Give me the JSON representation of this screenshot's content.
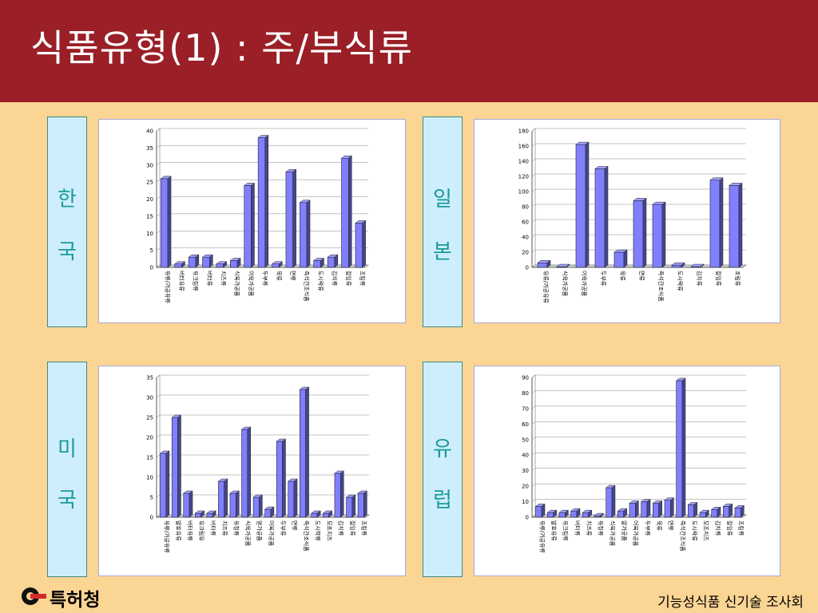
{
  "title": "식품유형(1) : 주/부식류",
  "regions": {
    "korea": [
      "한",
      "국"
    ],
    "japan": [
      "일",
      "본"
    ],
    "usa": [
      "미",
      "국"
    ],
    "europe": [
      "유",
      "럽"
    ]
  },
  "footer": {
    "agency": "특허청",
    "org": "기능성식품 신기술 조사회"
  },
  "colors": {
    "bar": "#8080ff",
    "header": "#9a1f27",
    "background": "#fbd593"
  },
  "chart_data": [
    {
      "type": "bar",
      "region": "한국",
      "ylim": [
        0,
        40
      ],
      "ticks": [
        0,
        5,
        10,
        15,
        20,
        25,
        30,
        35,
        40
      ],
      "categories": [
        "유류/가공유류",
        "버터유류",
        "유크림류",
        "버터류",
        "치즈류",
        "식육가공품",
        "어육가공품",
        "두부류",
        "묵류",
        "면류",
        "즉석간조식품",
        "도시락류",
        "김치류",
        "절임류",
        "조림류"
      ],
      "values": [
        26,
        1,
        3,
        3,
        1,
        2,
        24,
        38,
        1,
        28,
        19,
        2,
        3,
        32,
        13
      ]
    },
    {
      "type": "bar",
      "region": "일본",
      "ylim": [
        0,
        180
      ],
      "ticks": [
        0,
        20,
        40,
        60,
        80,
        100,
        120,
        140,
        160,
        180
      ],
      "categories": [
        "유류/가공유류",
        "식육가공품",
        "어육가공품",
        "두부류",
        "묵류",
        "면류",
        "즉석간조식품",
        "도시락류",
        "김치류",
        "절임류",
        "조림류"
      ],
      "values": [
        6,
        1,
        162,
        130,
        20,
        88,
        83,
        3,
        1,
        115,
        108
      ]
    },
    {
      "type": "bar",
      "region": "미국",
      "ylim": [
        0,
        35
      ],
      "ticks": [
        0,
        5,
        10,
        15,
        20,
        25,
        30,
        35
      ],
      "categories": [
        "유류/가공유류",
        "발효유류",
        "버터유류",
        "유크림유",
        "버터류",
        "치즈류",
        "유청류",
        "식육가공품",
        "알가공품",
        "어육가공품",
        "두부류",
        "면류",
        "즉석간조식품",
        "도시락류",
        "모조치즈",
        "김치류",
        "절임류",
        "조림류"
      ],
      "values": [
        16,
        25,
        6,
        1,
        1,
        9,
        6,
        22,
        5,
        2,
        19,
        9,
        32,
        1,
        1,
        11,
        5,
        6
      ]
    },
    {
      "type": "bar",
      "region": "유럽",
      "ylim": [
        0,
        90
      ],
      "ticks": [
        0,
        10,
        20,
        30,
        40,
        50,
        60,
        70,
        80,
        90
      ],
      "categories": [
        "유류/가공유류",
        "발효유류",
        "유크림류",
        "버터류",
        "치즈류",
        "유청류",
        "식육가공품",
        "알가공품",
        "어육가공품",
        "두부류",
        "묵류",
        "면류",
        "즉석간조식품",
        "도시락류",
        "모조치즈",
        "김치류",
        "절임류",
        "조림류"
      ],
      "values": [
        7,
        3,
        3,
        4,
        3,
        1,
        19,
        4,
        9,
        10,
        9,
        11,
        88,
        8,
        3,
        5,
        7,
        6
      ]
    }
  ]
}
